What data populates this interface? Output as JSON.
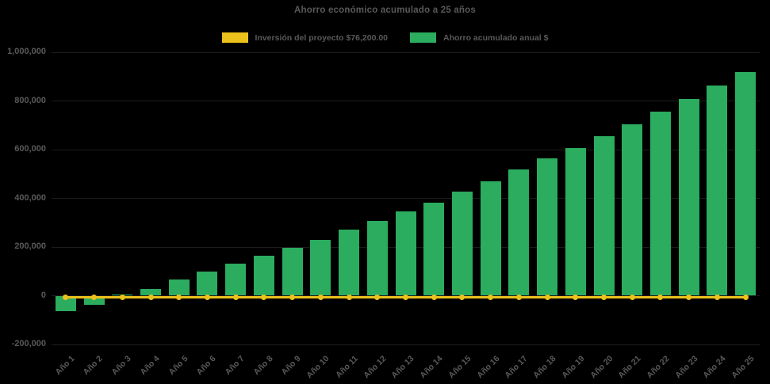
{
  "chart_data": {
    "type": "bar",
    "title": "Ahorro económico acumulado a 25 años",
    "categories": [
      "Año 1",
      "Año 2",
      "Año 3",
      "Año 4",
      "Año 5",
      "Año 6",
      "Año 7",
      "Año 8",
      "Año 9",
      "Año 10",
      "Año 11",
      "Año 12",
      "Año 13",
      "Año 14",
      "Año 15",
      "Año 16",
      "Año 17",
      "Año 18",
      "Año 19",
      "Año 20",
      "Año 21",
      "Año 22",
      "Año 23",
      "Año 24",
      "Año 25"
    ],
    "series": [
      {
        "name": "Inversión del proyecto $76,200.00",
        "type": "line",
        "color": "#EDC11B",
        "values": [
          0,
          0,
          0,
          0,
          0,
          0,
          0,
          0,
          0,
          0,
          0,
          0,
          0,
          0,
          0,
          0,
          0,
          0,
          0,
          0,
          0,
          0,
          0,
          0,
          0
        ]
      },
      {
        "name": "Ahorro acumulado anual $",
        "type": "bar",
        "color": "#2BAC5E",
        "values": [
          -62000,
          -37000,
          5000,
          28000,
          66000,
          98000,
          131000,
          163000,
          196000,
          230000,
          272000,
          308000,
          345000,
          383000,
          429000,
          469000,
          518000,
          564000,
          607000,
          654000,
          703000,
          756000,
          808000,
          864000,
          919000
        ]
      }
    ],
    "xlabel": "",
    "ylabel": "",
    "ylim": [
      -200000,
      1000000
    ],
    "ytick_interval": 200000,
    "ytick_labels": [
      "1,000,000",
      "800,000",
      "600,000",
      "400,000",
      "200,000",
      "0",
      "-200,000"
    ],
    "legend_position": "top",
    "grid": true,
    "background_color": "#000000",
    "text_color": "#595959",
    "gridline_color": "#1c1c1c"
  }
}
